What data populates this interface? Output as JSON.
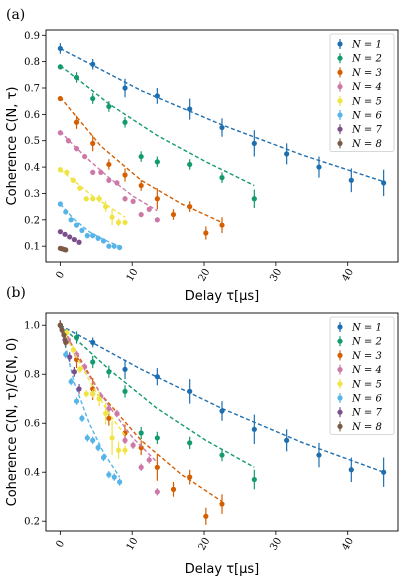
{
  "chart_data": [
    {
      "type": "scatter",
      "panel_label": "(a)",
      "xlabel": "Delay τ[μs]",
      "ylabel": "Coherence C(N, τ)",
      "xlim": [
        -2,
        47
      ],
      "ylim": [
        0.04,
        0.92
      ],
      "xticks": [
        0,
        10,
        20,
        30,
        40
      ],
      "yticks": [
        0.1,
        0.2,
        0.3,
        0.4,
        0.5,
        0.6,
        0.7,
        0.8,
        0.9
      ],
      "legend_position": "top-right",
      "series": [
        {
          "name": "N = 1",
          "color": "#1f6fb0",
          "x": [
            0,
            4.5,
            9,
            13.5,
            18,
            22.5,
            27,
            31.5,
            36,
            40.5,
            45
          ],
          "y": [
            0.85,
            0.79,
            0.7,
            0.67,
            0.62,
            0.55,
            0.49,
            0.45,
            0.4,
            0.35,
            0.34
          ],
          "yerr": [
            0.02,
            0.02,
            0.035,
            0.03,
            0.04,
            0.035,
            0.05,
            0.04,
            0.04,
            0.045,
            0.05
          ],
          "fit": [
            [
              0,
              0.85
            ],
            [
              11.25,
              0.69
            ],
            [
              22.5,
              0.56
            ],
            [
              33.75,
              0.445
            ],
            [
              45,
              0.345
            ]
          ]
        },
        {
          "name": "N = 2",
          "color": "#139a6e",
          "x": [
            0,
            2.25,
            4.5,
            6.75,
            9,
            11.25,
            13.5,
            18,
            22.5,
            27
          ],
          "y": [
            0.78,
            0.74,
            0.66,
            0.63,
            0.57,
            0.44,
            0.42,
            0.41,
            0.36,
            0.28
          ],
          "yerr": [
            0.01,
            0.02,
            0.02,
            0.02,
            0.02,
            0.02,
            0.02,
            0.02,
            0.02,
            0.035
          ],
          "fit": [
            [
              0,
              0.785
            ],
            [
              6.75,
              0.64
            ],
            [
              13.5,
              0.52
            ],
            [
              20.25,
              0.42
            ],
            [
              27,
              0.33
            ]
          ]
        },
        {
          "name": "N = 3",
          "color": "#d55e00",
          "x": [
            0,
            2.25,
            4.5,
            6.75,
            9,
            11.25,
            13.5,
            15.75,
            18,
            20.25,
            22.5
          ],
          "y": [
            0.66,
            0.57,
            0.49,
            0.41,
            0.37,
            0.33,
            0.28,
            0.22,
            0.25,
            0.15,
            0.18
          ],
          "yerr": [
            0.01,
            0.025,
            0.03,
            0.02,
            0.025,
            0.02,
            0.04,
            0.02,
            0.02,
            0.025,
            0.03
          ],
          "fit": [
            [
              0,
              0.665
            ],
            [
              5.6,
              0.48
            ],
            [
              11.25,
              0.35
            ],
            [
              16.9,
              0.26
            ],
            [
              22.5,
              0.19
            ]
          ]
        },
        {
          "name": "N = 4",
          "color": "#cc79a7",
          "x": [
            0,
            1.125,
            2.25,
            3.375,
            4.5,
            5.625,
            6.75,
            7.875,
            9,
            10.125,
            11.25,
            12.375,
            13.5
          ],
          "y": [
            0.53,
            0.5,
            0.47,
            0.44,
            0.38,
            0.38,
            0.35,
            0.34,
            0.28,
            0.27,
            0.22,
            0.24,
            0.2
          ],
          "yerr": [
            0.01,
            0.01,
            0.01,
            0.01,
            0.01,
            0.01,
            0.01,
            0.01,
            0.01,
            0.01,
            0.01,
            0.01,
            0.01
          ],
          "fit": [
            [
              0,
              0.535
            ],
            [
              3.4,
              0.44
            ],
            [
              6.75,
              0.36
            ],
            [
              10.1,
              0.29
            ],
            [
              13.5,
              0.235
            ]
          ]
        },
        {
          "name": "N = 5",
          "color": "#f0e442",
          "x": [
            0,
            0.9,
            1.8,
            2.7,
            3.6,
            4.5,
            5.4,
            6.3,
            7.2,
            8.1,
            9
          ],
          "y": [
            0.39,
            0.38,
            0.35,
            0.32,
            0.28,
            0.28,
            0.28,
            0.25,
            0.21,
            0.19,
            0.19
          ],
          "yerr": [
            0.01,
            0.01,
            0.01,
            0.01,
            0.01,
            0.01,
            0.015,
            0.02,
            0.03,
            0.015,
            0.01
          ],
          "fit": [
            [
              0,
              0.39
            ],
            [
              2.25,
              0.34
            ],
            [
              4.5,
              0.29
            ],
            [
              6.75,
              0.25
            ],
            [
              9,
              0.21
            ]
          ]
        },
        {
          "name": "N = 6",
          "color": "#56b4e9",
          "x": [
            0,
            0.75,
            1.5,
            2.25,
            3,
            3.75,
            4.5,
            5.25,
            6,
            6.75,
            7.5,
            8.25
          ],
          "y": [
            0.26,
            0.23,
            0.2,
            0.18,
            0.16,
            0.14,
            0.14,
            0.13,
            0.12,
            0.1,
            0.1,
            0.095
          ],
          "yerr": [
            0.01,
            0.01,
            0.01,
            0.01,
            0.01,
            0.01,
            0.01,
            0.01,
            0.01,
            0.01,
            0.01,
            0.01
          ],
          "fit": [
            [
              0,
              0.26
            ],
            [
              2,
              0.2
            ],
            [
              4,
              0.155
            ],
            [
              6,
              0.125
            ],
            [
              8.25,
              0.1
            ]
          ]
        },
        {
          "name": "N = 7",
          "color": "#7a4f8c",
          "x": [
            0,
            0.65,
            1.3,
            1.95,
            2.6
          ],
          "y": [
            0.155,
            0.145,
            0.135,
            0.125,
            0.115
          ],
          "yerr": [
            0.008,
            0.008,
            0.008,
            0.008,
            0.008
          ],
          "fit": []
        },
        {
          "name": "N = 8",
          "color": "#7b5a45",
          "x": [
            0,
            0.25,
            0.5,
            0.75
          ],
          "y": [
            0.092,
            0.09,
            0.088,
            0.086
          ],
          "yerr": [
            0.005,
            0.005,
            0.005,
            0.005
          ],
          "fit": []
        }
      ]
    },
    {
      "type": "scatter",
      "panel_label": "(b)",
      "xlabel": "Delay τ[μs]",
      "ylabel": "Coherence C(N, τ)/C(N, 0)",
      "xlim": [
        -2,
        47
      ],
      "ylim": [
        0.16,
        1.05
      ],
      "xticks": [
        0,
        10,
        20,
        30,
        40
      ],
      "yticks": [
        0.2,
        0.4,
        0.6,
        0.8,
        1.0
      ],
      "legend_position": "top-right",
      "series": [
        {
          "name": "N = 1",
          "color": "#1f6fb0",
          "x": [
            0,
            4.5,
            9,
            13.5,
            18,
            22.5,
            27,
            31.5,
            36,
            40.5,
            45
          ],
          "y": [
            1.0,
            0.93,
            0.82,
            0.79,
            0.73,
            0.65,
            0.575,
            0.53,
            0.47,
            0.41,
            0.4
          ],
          "yerr": [
            0.02,
            0.02,
            0.04,
            0.035,
            0.05,
            0.04,
            0.06,
            0.045,
            0.05,
            0.05,
            0.06
          ],
          "fit": [
            [
              0,
              1.0
            ],
            [
              11.25,
              0.82
            ],
            [
              22.5,
              0.66
            ],
            [
              33.75,
              0.52
            ],
            [
              45,
              0.4
            ]
          ]
        },
        {
          "name": "N = 2",
          "color": "#139a6e",
          "x": [
            0,
            2.25,
            4.5,
            6.75,
            9,
            11.25,
            13.5,
            18,
            22.5,
            27
          ],
          "y": [
            1.0,
            0.95,
            0.85,
            0.81,
            0.73,
            0.56,
            0.54,
            0.52,
            0.47,
            0.37
          ],
          "yerr": [
            0.015,
            0.025,
            0.025,
            0.025,
            0.025,
            0.025,
            0.025,
            0.025,
            0.025,
            0.04
          ],
          "fit": [
            [
              0,
              1.0
            ],
            [
              6.75,
              0.82
            ],
            [
              13.5,
              0.66
            ],
            [
              20.25,
              0.53
            ],
            [
              27,
              0.42
            ]
          ]
        },
        {
          "name": "N = 3",
          "color": "#d55e00",
          "x": [
            0,
            2.25,
            4.5,
            6.75,
            9,
            11.25,
            13.5,
            15.75,
            18,
            20.25,
            22.5
          ],
          "y": [
            1.0,
            0.86,
            0.74,
            0.62,
            0.56,
            0.5,
            0.42,
            0.33,
            0.38,
            0.22,
            0.27
          ],
          "yerr": [
            0.015,
            0.035,
            0.045,
            0.03,
            0.035,
            0.03,
            0.055,
            0.03,
            0.03,
            0.035,
            0.04
          ],
          "fit": [
            [
              0,
              1.0
            ],
            [
              5.6,
              0.72
            ],
            [
              11.25,
              0.53
            ],
            [
              16.9,
              0.39
            ],
            [
              22.5,
              0.28
            ]
          ]
        },
        {
          "name": "N = 4",
          "color": "#cc79a7",
          "x": [
            0,
            1.125,
            2.25,
            3.375,
            4.5,
            5.625,
            6.75,
            7.875,
            9,
            10.125,
            11.25,
            12.375,
            13.5
          ],
          "y": [
            1.0,
            0.94,
            0.88,
            0.83,
            0.72,
            0.71,
            0.66,
            0.64,
            0.53,
            0.51,
            0.42,
            0.45,
            0.32
          ],
          "yerr": [
            0.015,
            0.015,
            0.015,
            0.015,
            0.015,
            0.015,
            0.015,
            0.015,
            0.015,
            0.015,
            0.015,
            0.015,
            0.015
          ],
          "fit": [
            [
              0,
              1.0
            ],
            [
              3.4,
              0.82
            ],
            [
              6.75,
              0.67
            ],
            [
              10.1,
              0.54
            ],
            [
              13.5,
              0.44
            ]
          ]
        },
        {
          "name": "N = 5",
          "color": "#f0e442",
          "x": [
            0,
            0.9,
            1.8,
            2.7,
            3.6,
            4.5,
            5.4,
            6.3,
            7.2,
            8.1,
            9
          ],
          "y": [
            1.0,
            0.97,
            0.9,
            0.82,
            0.72,
            0.72,
            0.7,
            0.64,
            0.54,
            0.49,
            0.49
          ],
          "yerr": [
            0.015,
            0.015,
            0.015,
            0.015,
            0.015,
            0.015,
            0.03,
            0.045,
            0.07,
            0.035,
            0.02
          ],
          "fit": [
            [
              0,
              1.0
            ],
            [
              2.25,
              0.87
            ],
            [
              4.5,
              0.75
            ],
            [
              6.75,
              0.64
            ],
            [
              9,
              0.55
            ]
          ]
        },
        {
          "name": "N = 6",
          "color": "#56b4e9",
          "x": [
            0,
            0.75,
            1.5,
            2.25,
            3,
            3.75,
            4.5,
            5.25,
            6,
            6.75,
            7.5,
            8.25
          ],
          "y": [
            1.0,
            0.88,
            0.77,
            0.69,
            0.62,
            0.54,
            0.53,
            0.5,
            0.46,
            0.39,
            0.38,
            0.36
          ],
          "yerr": [
            0.015,
            0.015,
            0.015,
            0.015,
            0.015,
            0.015,
            0.015,
            0.015,
            0.015,
            0.015,
            0.015,
            0.015
          ],
          "fit": [
            [
              0,
              1.0
            ],
            [
              2,
              0.76
            ],
            [
              4,
              0.6
            ],
            [
              6,
              0.48
            ],
            [
              8.25,
              0.38
            ]
          ]
        },
        {
          "name": "N = 7",
          "color": "#7a4f8c",
          "x": [
            0,
            0.65,
            1.3,
            1.95,
            2.6
          ],
          "y": [
            1.0,
            0.94,
            0.87,
            0.81,
            0.74
          ],
          "yerr": [
            0.02,
            0.02,
            0.02,
            0.02,
            0.02
          ],
          "fit": []
        },
        {
          "name": "N = 8",
          "color": "#7b5a45",
          "x": [
            0,
            0.25,
            0.5,
            0.75
          ],
          "y": [
            1.0,
            0.98,
            0.96,
            0.93
          ],
          "yerr": [
            0.02,
            0.02,
            0.02,
            0.02
          ],
          "fit": []
        }
      ]
    }
  ]
}
